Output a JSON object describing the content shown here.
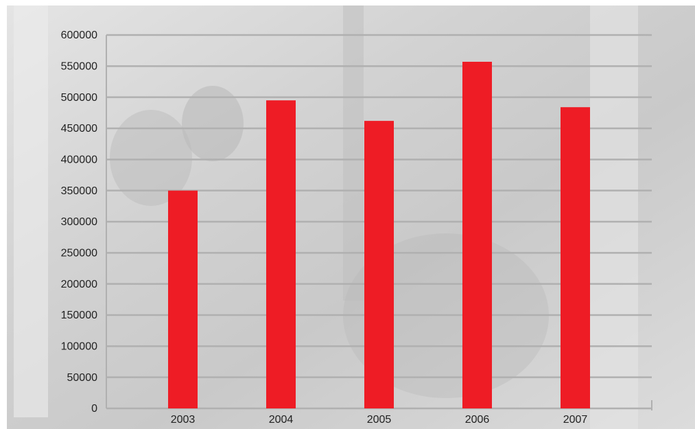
{
  "chart_data": {
    "type": "bar",
    "categories": [
      "2003",
      "2004",
      "2005",
      "2006",
      "2007"
    ],
    "values": [
      350000,
      495000,
      462000,
      557000,
      484000
    ],
    "color": "#ee1c25",
    "ylim": [
      0,
      600000
    ],
    "yticks": [
      0,
      50000,
      100000,
      150000,
      200000,
      250000,
      300000,
      350000,
      400000,
      450000,
      500000,
      550000,
      600000
    ],
    "grid": true
  }
}
